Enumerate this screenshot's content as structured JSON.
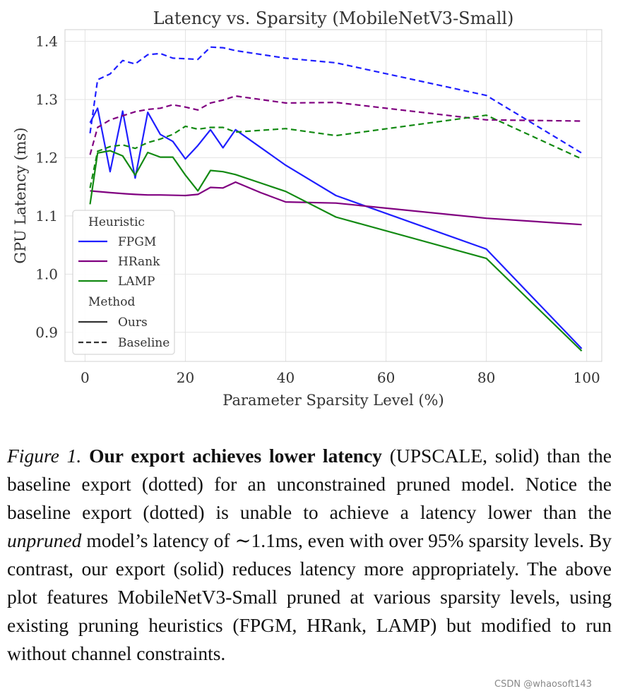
{
  "chart_data": {
    "type": "line",
    "title": "Latency vs. Sparsity (MobileNetV3-Small)",
    "xlabel": "Parameter Sparsity Level (%)",
    "ylabel": "GPU Latency (ms)",
    "xlim": [
      -4,
      103
    ],
    "ylim": [
      0.85,
      1.42
    ],
    "xticks": [
      0,
      20,
      40,
      60,
      80,
      100
    ],
    "yticks": [
      0.9,
      1.0,
      1.1,
      1.2,
      1.3,
      1.4
    ],
    "xtick_labels": [
      "0",
      "20",
      "40",
      "60",
      "80",
      "100"
    ],
    "ytick_labels": [
      "0.9",
      "1.0",
      "1.1",
      "1.2",
      "1.3",
      "1.4"
    ],
    "grid": true,
    "legend": {
      "position": "lower-left",
      "groups": [
        {
          "title": "Heuristic",
          "entries": [
            {
              "label": "FPGM",
              "color": "#1f1fff",
              "style": "solid"
            },
            {
              "label": "HRank",
              "color": "#800080",
              "style": "solid"
            },
            {
              "label": "LAMP",
              "color": "#138a13",
              "style": "solid"
            }
          ]
        },
        {
          "title": "Method",
          "entries": [
            {
              "label": "Ours",
              "color": "#333333",
              "style": "solid"
            },
            {
              "label": "Baseline",
              "color": "#333333",
              "style": "dashed"
            }
          ]
        }
      ]
    },
    "series": [
      {
        "heuristic": "FPGM",
        "method": "Ours",
        "color": "#1f1fff",
        "style": "solid",
        "x": [
          1,
          2.5,
          5,
          7.5,
          10,
          12.5,
          15,
          17.5,
          20,
          22.5,
          25,
          27.5,
          30,
          40,
          50,
          80,
          99
        ],
        "y": [
          1.26,
          1.285,
          1.176,
          1.28,
          1.165,
          1.278,
          1.24,
          1.228,
          1.198,
          1.221,
          1.248,
          1.217,
          1.248,
          1.187,
          1.135,
          1.043,
          0.872
        ]
      },
      {
        "heuristic": "HRank",
        "method": "Ours",
        "color": "#800080",
        "style": "solid",
        "x": [
          1,
          5,
          8,
          10,
          12.5,
          15,
          20,
          22.5,
          25,
          27.5,
          30,
          35,
          40,
          50,
          80,
          99
        ],
        "y": [
          1.143,
          1.14,
          1.138,
          1.137,
          1.136,
          1.136,
          1.135,
          1.137,
          1.149,
          1.148,
          1.158,
          1.14,
          1.124,
          1.122,
          1.096,
          1.085
        ]
      },
      {
        "heuristic": "LAMP",
        "method": "Ours",
        "color": "#138a13",
        "style": "solid",
        "x": [
          1,
          2.5,
          5,
          7.5,
          10,
          12.5,
          15,
          17.5,
          20,
          22.5,
          25,
          27.5,
          30,
          40,
          50,
          80,
          99
        ],
        "y": [
          1.12,
          1.208,
          1.212,
          1.203,
          1.17,
          1.209,
          1.201,
          1.201,
          1.17,
          1.143,
          1.178,
          1.176,
          1.171,
          1.142,
          1.098,
          1.027,
          0.868
        ]
      },
      {
        "heuristic": "FPGM",
        "method": "Baseline",
        "color": "#1f1fff",
        "style": "dashed",
        "x": [
          1,
          2.5,
          5,
          7.5,
          10,
          12.5,
          15,
          17.5,
          20,
          22.5,
          25,
          27.5,
          30,
          40,
          50,
          80,
          99
        ],
        "y": [
          1.242,
          1.334,
          1.344,
          1.367,
          1.361,
          1.377,
          1.379,
          1.371,
          1.37,
          1.369,
          1.39,
          1.389,
          1.384,
          1.371,
          1.363,
          1.307,
          1.208
        ]
      },
      {
        "heuristic": "HRank",
        "method": "Baseline",
        "color": "#800080",
        "style": "dashed",
        "x": [
          1,
          2.5,
          5,
          7.5,
          10,
          12.5,
          15,
          17.5,
          20,
          22.5,
          25,
          27.5,
          30,
          40,
          50,
          80,
          99
        ],
        "y": [
          1.205,
          1.252,
          1.265,
          1.272,
          1.279,
          1.283,
          1.285,
          1.291,
          1.287,
          1.282,
          1.294,
          1.299,
          1.306,
          1.294,
          1.295,
          1.265,
          1.263
        ]
      },
      {
        "heuristic": "LAMP",
        "method": "Baseline",
        "color": "#138a13",
        "style": "dashed",
        "x": [
          1,
          2.5,
          5,
          7.5,
          10,
          12.5,
          15,
          17.5,
          20,
          22.5,
          25,
          27.5,
          30,
          40,
          50,
          80,
          99
        ],
        "y": [
          1.148,
          1.211,
          1.219,
          1.222,
          1.216,
          1.226,
          1.232,
          1.24,
          1.254,
          1.249,
          1.252,
          1.252,
          1.244,
          1.25,
          1.238,
          1.273,
          1.198
        ]
      }
    ]
  },
  "caption": {
    "label": "Figure 1.",
    "bold": "Our export achieves lower latency",
    "t1": " (UPSCALE, solid) than the baseline export (dotted) for an unconstrained pruned model. Notice the baseline export (dotted) is unable to achieve a latency lower than the ",
    "em": "unpruned",
    "t2": " model’s latency of ∼1.1ms, even with over 95% sparsity levels.  By contrast, our export (solid) reduces latency more appropriately.  The above plot features MobileNetV3-Small pruned at various sparsity levels, using existing pruning heuristics (FPGM, HRank, LAMP) but modified to run without channel constraints."
  },
  "watermark": "CSDN @whaosoft143"
}
